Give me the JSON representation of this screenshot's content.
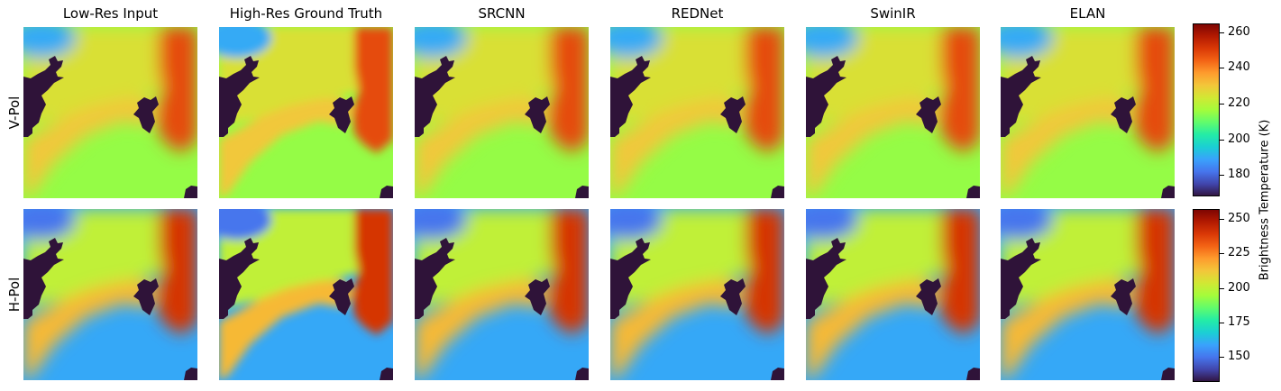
{
  "columns": [
    "Low-Res Input",
    "High-Res Ground Truth",
    "SRCNN",
    "REDNet",
    "SwinIR",
    "ELAN"
  ],
  "rows": [
    "V-Pol",
    "H-Pol"
  ],
  "colorbar_title": "Brightness Temperature (K)",
  "colors": {
    "land": "#2f1339",
    "colormap": "turbo",
    "stops": [
      "#30123b",
      "#4145ab",
      "#4675ed",
      "#39a2fc",
      "#1bcfd4",
      "#24eca6",
      "#61fc6c",
      "#a4fc3b",
      "#d1e834",
      "#f3c63a",
      "#fe9b2d",
      "#f36315",
      "#d93806",
      "#b11901",
      "#7a0403"
    ]
  },
  "chart_data": {
    "type": "heatmap",
    "title": "",
    "columns": [
      "Low-Res Input",
      "High-Res Ground Truth",
      "SRCNN",
      "REDNet",
      "SwinIR",
      "ELAN"
    ],
    "rows": [
      "V-Pol",
      "H-Pol"
    ],
    "colorbar_label": "Brightness Temperature (K)",
    "colorbars": [
      {
        "row": "V-Pol",
        "range": [
          168,
          265
        ],
        "ticks": [
          180,
          200,
          220,
          240,
          260
        ],
        "tick_labels": [
          "180",
          "200",
          "220",
          "240",
          "260"
        ]
      },
      {
        "row": "H-Pol",
        "range": [
          132,
          257
        ],
        "ticks": [
          150,
          175,
          200,
          225,
          250
        ],
        "tick_labels": [
          "150",
          "175",
          "200",
          "225",
          "250"
        ]
      }
    ],
    "scene_values": {
      "V-Pol": {
        "ocean_top_left": 190,
        "upper_center": 225,
        "warm_region_right": 248,
        "central_band": 230,
        "ocean_lower": 215,
        "land_mask": 168
      },
      "H-Pol": {
        "ocean_top_left": 150,
        "upper_center": 200,
        "warm_region_right": 240,
        "central_band": 215,
        "ocean_lower": 160,
        "land_mask": 132
      }
    }
  }
}
